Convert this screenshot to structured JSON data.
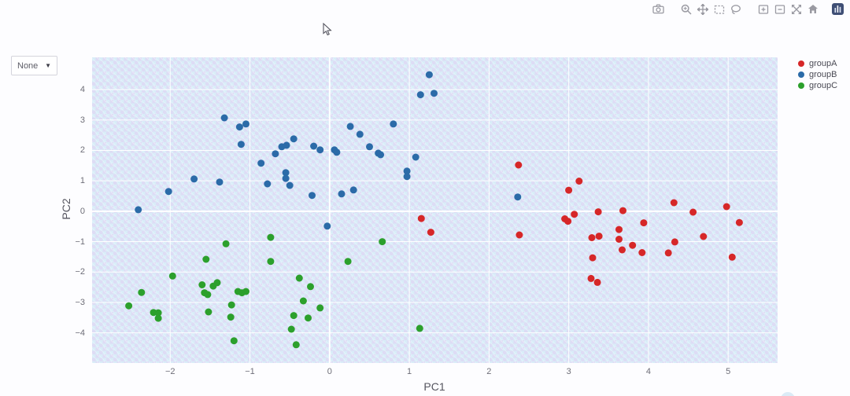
{
  "modebar": {
    "icons": [
      {
        "name": "camera-icon",
        "title": "Download plot as png"
      },
      {
        "name": "zoom-icon",
        "title": "Zoom"
      },
      {
        "name": "pan-icon",
        "title": "Pan"
      },
      {
        "name": "box-select-icon",
        "title": "Box select"
      },
      {
        "name": "lasso-select-icon",
        "title": "Lasso select"
      },
      {
        "name": "zoom-in-icon",
        "title": "Zoom in"
      },
      {
        "name": "zoom-out-icon",
        "title": "Zoom out"
      },
      {
        "name": "autoscale-icon",
        "title": "Autoscale"
      },
      {
        "name": "reset-axes-icon",
        "title": "Reset axes"
      },
      {
        "name": "plotly-logo-icon",
        "title": "Produced with Plotly"
      }
    ]
  },
  "controls": {
    "color_dropdown": {
      "value": "None",
      "caret": "▼"
    }
  },
  "legend": {
    "items": [
      {
        "label": "groupA",
        "color": "#d62728"
      },
      {
        "label": "groupB",
        "color": "#2b6ba8"
      },
      {
        "label": "groupC",
        "color": "#2ca02c"
      }
    ]
  },
  "axes": {
    "x_label": "PC1",
    "y_label": "PC2"
  },
  "chart_data": {
    "type": "scatter",
    "title": "",
    "xlabel": "PC1",
    "ylabel": "PC2",
    "x_range": [
      -2.98,
      5.62
    ],
    "y_range": [
      -4.99,
      5.06
    ],
    "x_ticks": [
      -2,
      -1,
      0,
      1,
      2,
      3,
      4,
      5
    ],
    "y_ticks": [
      -4,
      -3,
      -2,
      -1,
      0,
      1,
      2,
      3,
      4
    ],
    "grid": true,
    "legend_position": "top-right",
    "marker_radius": 4.5,
    "series": [
      {
        "name": "groupA",
        "color": "#d62728",
        "points": [
          [
            2.37,
            1.52
          ],
          [
            1.15,
            -0.24
          ],
          [
            1.27,
            -0.69
          ],
          [
            2.38,
            -0.78
          ],
          [
            3.13,
            0.99
          ],
          [
            3.0,
            0.69
          ],
          [
            3.07,
            -0.1
          ],
          [
            2.95,
            -0.25
          ],
          [
            2.99,
            -0.33
          ],
          [
            3.37,
            -0.02
          ],
          [
            3.68,
            0.02
          ],
          [
            4.32,
            0.28
          ],
          [
            4.56,
            -0.03
          ],
          [
            4.98,
            0.15
          ],
          [
            5.14,
            -0.37
          ],
          [
            3.94,
            -0.38
          ],
          [
            3.63,
            -0.6
          ],
          [
            3.29,
            -0.87
          ],
          [
            3.38,
            -0.82
          ],
          [
            3.63,
            -0.92
          ],
          [
            3.8,
            -1.12
          ],
          [
            3.67,
            -1.27
          ],
          [
            3.92,
            -1.36
          ],
          [
            4.33,
            -1.01
          ],
          [
            4.69,
            -0.83
          ],
          [
            4.25,
            -1.37
          ],
          [
            5.05,
            -1.51
          ],
          [
            3.3,
            -1.53
          ],
          [
            3.28,
            -2.21
          ],
          [
            3.36,
            -2.34
          ]
        ]
      },
      {
        "name": "groupB",
        "color": "#2b6ba8",
        "points": [
          [
            -1.32,
            3.07
          ],
          [
            -1.13,
            2.77
          ],
          [
            -1.05,
            2.87
          ],
          [
            -1.11,
            2.2
          ],
          [
            -0.45,
            2.38
          ],
          [
            -0.6,
            2.12
          ],
          [
            -0.54,
            2.17
          ],
          [
            -0.2,
            2.14
          ],
          [
            -0.12,
            2.02
          ],
          [
            -0.68,
            1.89
          ],
          [
            -0.86,
            1.58
          ],
          [
            -0.55,
            1.27
          ],
          [
            -0.55,
            1.08
          ],
          [
            -0.78,
            0.9
          ],
          [
            -0.5,
            0.85
          ],
          [
            -1.7,
            1.06
          ],
          [
            -1.38,
            0.96
          ],
          [
            -2.02,
            0.65
          ],
          [
            -2.4,
            0.05
          ],
          [
            -0.22,
            0.52
          ],
          [
            1.25,
            4.49
          ],
          [
            1.14,
            3.83
          ],
          [
            1.31,
            3.88
          ],
          [
            0.8,
            2.87
          ],
          [
            0.26,
            2.79
          ],
          [
            0.38,
            2.53
          ],
          [
            0.5,
            2.12
          ],
          [
            0.06,
            2.02
          ],
          [
            0.09,
            1.94
          ],
          [
            0.61,
            1.91
          ],
          [
            0.64,
            1.86
          ],
          [
            1.08,
            1.78
          ],
          [
            0.97,
            1.32
          ],
          [
            0.97,
            1.14
          ],
          [
            0.3,
            0.7
          ],
          [
            0.15,
            0.57
          ],
          [
            2.36,
            0.47
          ],
          [
            -0.03,
            -0.49
          ]
        ]
      },
      {
        "name": "groupC",
        "color": "#2ca02c",
        "points": [
          [
            0.66,
            -1.0
          ],
          [
            0.23,
            -1.65
          ],
          [
            -0.12,
            -3.18
          ],
          [
            1.13,
            -3.85
          ],
          [
            -0.74,
            -0.86
          ],
          [
            -1.3,
            -1.07
          ],
          [
            -1.55,
            -1.58
          ],
          [
            -0.74,
            -1.65
          ],
          [
            -1.97,
            -2.13
          ],
          [
            -0.38,
            -2.2
          ],
          [
            -0.24,
            -2.48
          ],
          [
            -1.6,
            -2.42
          ],
          [
            -1.46,
            -2.46
          ],
          [
            -1.41,
            -2.35
          ],
          [
            -1.57,
            -2.68
          ],
          [
            -1.53,
            -2.74
          ],
          [
            -1.15,
            -2.64
          ],
          [
            -1.1,
            -2.68
          ],
          [
            -1.05,
            -2.64
          ],
          [
            -2.36,
            -2.67
          ],
          [
            -2.52,
            -3.11
          ],
          [
            -2.21,
            -3.33
          ],
          [
            -2.15,
            -3.34
          ],
          [
            -2.15,
            -3.52
          ],
          [
            -1.23,
            -3.08
          ],
          [
            -1.24,
            -3.48
          ],
          [
            -1.52,
            -3.31
          ],
          [
            -1.2,
            -4.26
          ],
          [
            -0.33,
            -2.95
          ],
          [
            -0.45,
            -3.43
          ],
          [
            -0.27,
            -3.51
          ],
          [
            -0.48,
            -3.88
          ],
          [
            -0.42,
            -4.39
          ]
        ]
      }
    ]
  }
}
